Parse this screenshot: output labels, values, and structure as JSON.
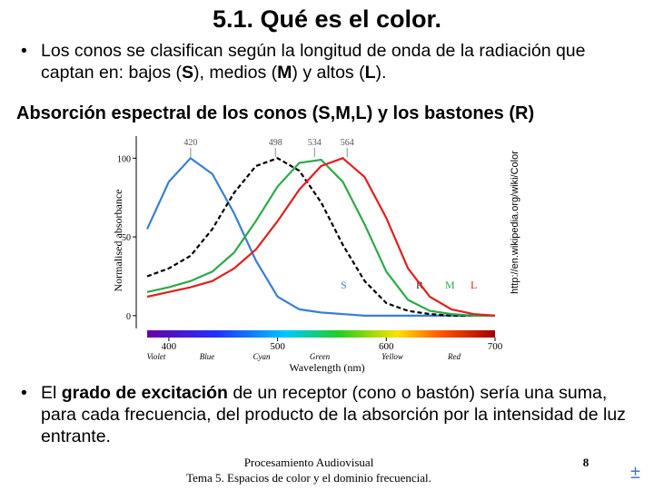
{
  "title": "5.1. Qué es el color.",
  "bullets": [
    [
      "Los conos se clasifican según la longitud de onda de la radiación que captan en: bajos (",
      "S",
      "), medios (",
      "M",
      ") y altos (",
      "L",
      ")."
    ],
    [
      "El ",
      "grado de excitación",
      " de un receptor (cono o bastón) sería una suma, para cada frecuencia, del producto de la absorción por la intensidad de luz entrante."
    ]
  ],
  "subheading": "Absorción espectral de los conos (S,M,L) y los bastones (R)",
  "chart_data": {
    "type": "line",
    "x_label": "Wavelength (nm)",
    "y_label": "Normalised absorbance",
    "credit": "http://en.wikipedia.org/wiki/Color",
    "x": [
      380,
      400,
      420,
      440,
      460,
      480,
      500,
      520,
      540,
      560,
      580,
      600,
      620,
      640,
      660,
      680,
      700
    ],
    "series": [
      {
        "name": "S",
        "color": "#3a7fd0",
        "values": [
          55,
          85,
          100,
          90,
          65,
          35,
          12,
          4,
          2,
          1,
          0,
          0,
          0,
          0,
          0,
          0,
          0
        ]
      },
      {
        "name": "R",
        "color": "#000000",
        "dashed": true,
        "values": [
          25,
          30,
          38,
          55,
          78,
          95,
          100,
          92,
          72,
          45,
          22,
          8,
          3,
          1,
          0,
          0,
          0
        ]
      },
      {
        "name": "M",
        "color": "#2ea84a",
        "values": [
          15,
          18,
          22,
          28,
          40,
          60,
          82,
          97,
          99,
          85,
          58,
          28,
          10,
          3,
          1,
          0,
          0
        ]
      },
      {
        "name": "L",
        "color": "#e02020",
        "values": [
          12,
          15,
          18,
          22,
          30,
          42,
          60,
          80,
          95,
          100,
          88,
          62,
          30,
          12,
          4,
          1,
          0
        ]
      }
    ],
    "peaks": [
      420,
      498,
      534,
      564
    ],
    "color_names": [
      "Violet",
      "Blue",
      "Cyan",
      "Green",
      "Yellow",
      "Red"
    ],
    "xlim": [
      370,
      700
    ],
    "xticks": [
      400,
      500,
      600,
      700
    ],
    "ylim": [
      -7,
      114
    ],
    "yticks": [
      0,
      50,
      100
    ]
  },
  "footer": {
    "course": "Procesamiento Audiovisual",
    "topic": "Tema 5. Espacios de color y el dominio frecuencial.",
    "page": "8",
    "icon": "±"
  }
}
